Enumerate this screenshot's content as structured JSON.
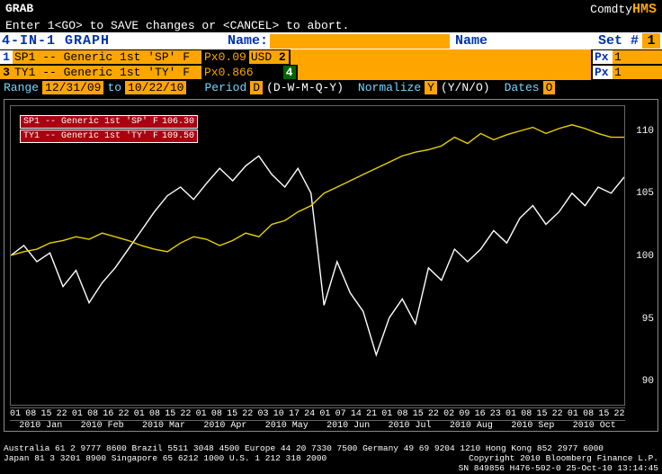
{
  "topbar": {
    "left": "GRAB",
    "right_text": "Comdty",
    "right_code": "HMS"
  },
  "hint": "Enter 1<GO> to SAVE changes or <CANCEL> to abort.",
  "titlebar": {
    "title": "4-IN-1 GRAPH",
    "name_label": "Name:",
    "name_value": "",
    "name_label2": "Name",
    "set_label": "Set #",
    "set_value": "1"
  },
  "series": [
    {
      "idx": "1",
      "desc": "SP1 -- Generic 1st 'SP' F",
      "mult": "Px0.09",
      "ccy": "USD",
      "idx2": "2",
      "px_label": "Px",
      "px_val": "1"
    },
    {
      "idx": "3",
      "desc": "TY1 -- Generic 1st 'TY' F",
      "mult": "Px0.866",
      "ccy": "",
      "idx2": "4",
      "px_label": "Px",
      "px_val": "1"
    }
  ],
  "controls": {
    "range_label": "Range",
    "date_from": "12/31/09",
    "date_to": "10/22/10",
    "to_label": "to",
    "period_label": "Period",
    "period_value": "D",
    "period_hint": "(D-W-M-Q-Y)",
    "norm_label": "Normalize",
    "norm_value": "Y",
    "norm_hint": "(Y/N/O)",
    "dates_label": "Dates",
    "dates_value": "O"
  },
  "legend": [
    {
      "cls": "sp",
      "name": "SP1 -- Generic 1st 'SP' F",
      "value": "106.30",
      "color": "#ffffff"
    },
    {
      "cls": "ty",
      "name": "TY1 -- Generic 1st 'TY' F",
      "value": "109.50",
      "color": "#e8d000"
    }
  ],
  "chart": {
    "ylim": [
      88,
      112
    ],
    "yticks": [
      90,
      95,
      100,
      105,
      110
    ],
    "xticks": [
      "01",
      "08",
      "15",
      "22",
      "01",
      "08",
      "16",
      "22",
      "01",
      "08",
      "15",
      "22",
      "01",
      "08",
      "15",
      "22",
      "03",
      "10",
      "17",
      "24",
      "01",
      "07",
      "14",
      "21",
      "01",
      "08",
      "15",
      "22",
      "02",
      "09",
      "16",
      "23",
      "01",
      "08",
      "15",
      "22",
      "01",
      "08",
      "15",
      "22"
    ],
    "xmonths": [
      "2010 Jan",
      "2010 Feb",
      "2010 Mar",
      "2010 Apr",
      "2010 May",
      "2010 Jun",
      "2010 Jul",
      "2010 Aug",
      "2010 Sep",
      "2010 Oct"
    ],
    "sp1": {
      "color": "#ffffff",
      "values": [
        100,
        100.8,
        99.5,
        100.2,
        97.5,
        98.8,
        96.2,
        97.8,
        99,
        100.5,
        102,
        103.5,
        104.8,
        105.5,
        104.5,
        105.8,
        107,
        106,
        107.2,
        108,
        106.5,
        105.5,
        107,
        105,
        96,
        99.5,
        97,
        95.5,
        92,
        95,
        96.5,
        94.5,
        99,
        98,
        100.5,
        99.5,
        100.5,
        102,
        101,
        103,
        104,
        102.5,
        103.5,
        105,
        104,
        105.5,
        105,
        106.3
      ]
    },
    "ty1": {
      "color": "#e8d000",
      "values": [
        100,
        100.3,
        100.5,
        101,
        101.2,
        101.5,
        101.3,
        101.8,
        101.5,
        101.2,
        100.8,
        100.5,
        100.3,
        101,
        101.5,
        101.3,
        100.8,
        101.2,
        101.8,
        101.5,
        102.5,
        102.8,
        103.5,
        104,
        105,
        105.5,
        106,
        106.5,
        107,
        107.5,
        108,
        108.3,
        108.5,
        108.8,
        109.5,
        109,
        109.8,
        109.3,
        109.7,
        110,
        110.3,
        109.8,
        110.2,
        110.5,
        110.2,
        109.8,
        109.5,
        109.5
      ]
    }
  },
  "footer": {
    "line1_left": "Australia 61 2 9777 8600 Brazil 5511 3048 4500 Europe 44 20 7330 7500 Germany 49 69 9204 1210 Hong Kong 852 2977 6000",
    "line2_left": "Japan 81 3 3201 8900        Singapore 65 6212 1000      U.S. 1 212 318 2000",
    "line2_right": "Copyright 2010 Bloomberg Finance L.P.",
    "line3_right": "SN 849856 H476-502-0 25-Oct-10 13:14:45"
  }
}
